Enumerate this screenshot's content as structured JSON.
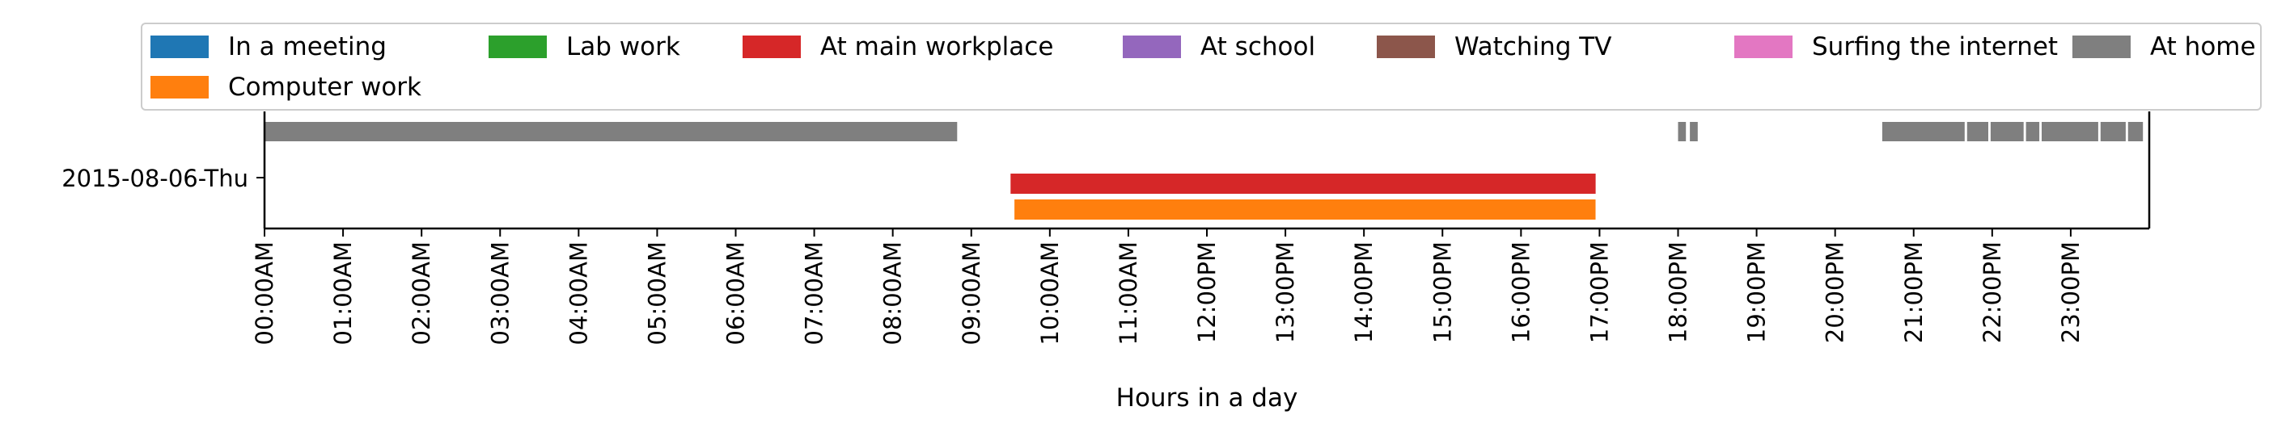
{
  "chart_data": {
    "type": "timeline",
    "title": "",
    "xlabel": "Hours in a day",
    "ylabel": "",
    "xlim": [
      0,
      24
    ],
    "x_ticks": [
      "00:00AM",
      "01:00AM",
      "02:00AM",
      "03:00AM",
      "04:00AM",
      "05:00AM",
      "06:00AM",
      "07:00AM",
      "08:00AM",
      "09:00AM",
      "10:00AM",
      "11:00AM",
      "12:00PM",
      "13:00PM",
      "14:00PM",
      "15:00PM",
      "16:00PM",
      "17:00PM",
      "18:00PM",
      "19:00PM",
      "20:00PM",
      "21:00PM",
      "22:00PM",
      "23:00PM"
    ],
    "categories": [
      "2015-08-06-Thu"
    ],
    "legend_position": "top",
    "grid": false,
    "series": [
      {
        "name": "In a meeting",
        "color": "#1f77b4",
        "intervals": []
      },
      {
        "name": "Computer work",
        "color": "#ff7f0e",
        "intervals": [
          [
            9.55,
            16.95
          ]
        ]
      },
      {
        "name": "Lab work",
        "color": "#2ca02c",
        "intervals": []
      },
      {
        "name": "At main workplace",
        "color": "#d62728",
        "intervals": [
          [
            9.5,
            16.95
          ]
        ]
      },
      {
        "name": "At school",
        "color": "#9467bd",
        "intervals": []
      },
      {
        "name": "Watching TV",
        "color": "#8c564b",
        "intervals": []
      },
      {
        "name": "Surfing the internet",
        "color": "#e377c2",
        "intervals": []
      },
      {
        "name": "At home",
        "color": "#7f7f7f",
        "intervals": [
          [
            0,
            8.82
          ],
          [
            18.0,
            18.1
          ],
          [
            18.15,
            18.25
          ],
          [
            20.6,
            21.65
          ],
          [
            21.68,
            21.95
          ],
          [
            21.98,
            22.4
          ],
          [
            22.43,
            22.6
          ],
          [
            22.63,
            23.35
          ],
          [
            23.38,
            23.7
          ],
          [
            23.73,
            23.92
          ]
        ]
      }
    ]
  }
}
